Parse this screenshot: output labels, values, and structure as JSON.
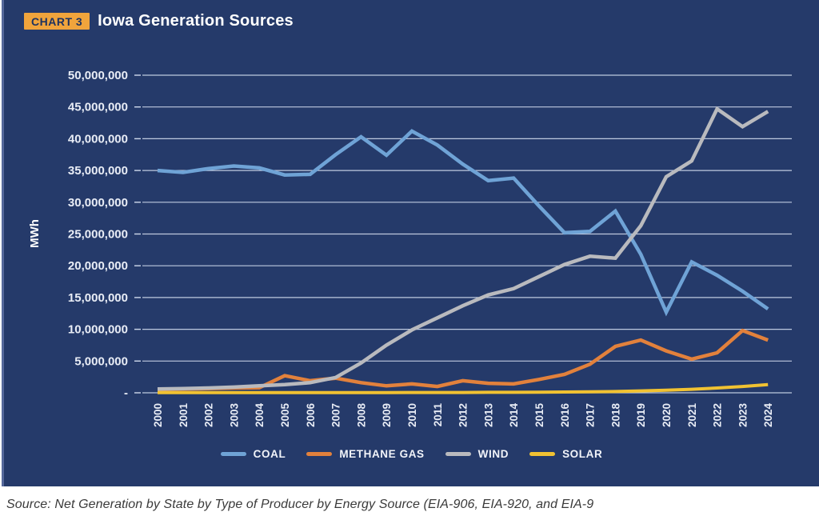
{
  "header": {
    "badge": "CHART 3",
    "title": "Iowa Generation Sources"
  },
  "y_axis": {
    "unit_label": "MWh",
    "tick_labels": [
      "50,000,000",
      "45,000,000",
      "40,000,000",
      "35,000,000",
      "30,000,000",
      "25,000,000",
      "20,000,000",
      "15,000,000",
      "10,000,000",
      "5,000,000",
      "-"
    ]
  },
  "source": {
    "text": "Source: Net Generation by State by Type of Producer by Energy Source (EIA-906, EIA-920, and EIA-9"
  },
  "colors": {
    "card_background": "#253a6a",
    "gridline": "#cfd9ec",
    "axis_text": "#e9edf6",
    "badge_background": "#f0a43c",
    "badge_text": "#1d3260",
    "coal": "#6fa3d6",
    "methane_gas": "#e2813c",
    "wind": "#b9babe",
    "solar": "#f1c232"
  },
  "chart_data": {
    "type": "line",
    "title": "Iowa Generation Sources",
    "xlabel": "",
    "ylabel": "MWh",
    "ylim": [
      0,
      50000000
    ],
    "y_tick_step": 5000000,
    "grid": "horizontal",
    "legend_position": "bottom",
    "categories": [
      "2000",
      "2001",
      "2002",
      "2003",
      "2004",
      "2005",
      "2006",
      "2007",
      "2008",
      "2009",
      "2010",
      "2011",
      "2012",
      "2013",
      "2014",
      "2015",
      "2016",
      "2017",
      "2018",
      "2019",
      "2020",
      "2021",
      "2022",
      "2023",
      "2024"
    ],
    "series": [
      {
        "name": "COAL",
        "color": "#6fa3d6",
        "values": [
          35000000,
          34700000,
          35300000,
          35700000,
          35400000,
          34300000,
          34400000,
          37500000,
          40300000,
          37400000,
          41200000,
          39000000,
          36000000,
          33400000,
          33800000,
          29400000,
          25200000,
          25400000,
          28600000,
          21800000,
          12700000,
          20600000,
          18500000,
          16000000,
          13200000
        ]
      },
      {
        "name": "METHANE GAS",
        "color": "#e2813c",
        "values": [
          500000,
          600000,
          650000,
          750000,
          800000,
          2700000,
          1900000,
          2300000,
          1600000,
          1100000,
          1400000,
          1000000,
          1900000,
          1500000,
          1400000,
          2100000,
          2900000,
          4500000,
          7300000,
          8300000,
          6600000,
          5300000,
          6300000,
          9800000,
          8300000
        ]
      },
      {
        "name": "WIND",
        "color": "#b9babe",
        "values": [
          600000,
          650000,
          750000,
          900000,
          1100000,
          1300000,
          1600000,
          2400000,
          4700000,
          7500000,
          9900000,
          11800000,
          13700000,
          15400000,
          16400000,
          18300000,
          20200000,
          21500000,
          21200000,
          26300000,
          34000000,
          36500000,
          44700000,
          41900000,
          44300000
        ]
      },
      {
        "name": "SOLAR",
        "color": "#f1c232",
        "values": [
          20000,
          20000,
          20000,
          20000,
          20000,
          20000,
          20000,
          20000,
          30000,
          30000,
          50000,
          50000,
          50000,
          70000,
          80000,
          100000,
          120000,
          150000,
          200000,
          300000,
          400000,
          550000,
          750000,
          1000000,
          1300000
        ]
      }
    ]
  }
}
